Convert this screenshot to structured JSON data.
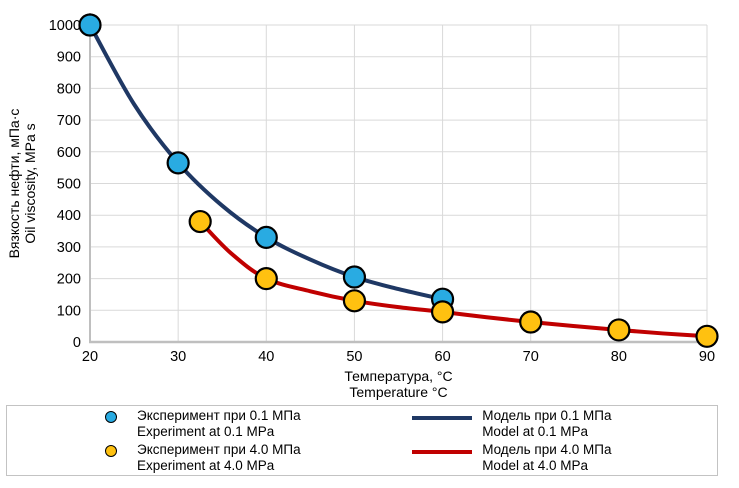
{
  "figure": {
    "background": "#FFFFFF"
  },
  "chart_data": {
    "type": "line+scatter",
    "title": "",
    "x_axis": {
      "title_lines": [
        "Температура, °C",
        "Temperature °C"
      ],
      "min": 20,
      "max": 90,
      "step": 10,
      "tick_labels": [
        "20",
        "30",
        "40",
        "50",
        "60",
        "70",
        "80",
        "90"
      ]
    },
    "y_axis": {
      "title_lines": [
        "Вязкость нефти, мПа·с",
        "Oil viscosity, MPa s"
      ],
      "min": 0,
      "max": 1000,
      "step": 100,
      "tick_labels": [
        "0",
        "100",
        "200",
        "300",
        "400",
        "500",
        "600",
        "700",
        "800",
        "900",
        "1000"
      ]
    },
    "grid": true,
    "colors": {
      "grid": "#D9D9D9",
      "axis": "#BFBFBF",
      "marker_outline": "#000000"
    },
    "series": [
      {
        "id": "model-0.1mpa",
        "kind": "line",
        "label_ru": "Модель при 0.1 МПа",
        "label_en": "Model at 0.1 MPa",
        "color": "#1F3864",
        "width": 4,
        "points": [
          [
            20,
            1000
          ],
          [
            25,
            750
          ],
          [
            30,
            565
          ],
          [
            35,
            430
          ],
          [
            40,
            330
          ],
          [
            45,
            260
          ],
          [
            50,
            205
          ],
          [
            55,
            167
          ],
          [
            60,
            135
          ]
        ]
      },
      {
        "id": "model-4.0mpa",
        "kind": "line",
        "label_ru": "Модель при 4.0 МПа",
        "label_en": "Model at 4.0 MPa",
        "color": "#C00000",
        "width": 4,
        "points": [
          [
            32.5,
            380
          ],
          [
            36,
            280
          ],
          [
            40,
            200
          ],
          [
            45,
            160
          ],
          [
            50,
            130
          ],
          [
            55,
            110
          ],
          [
            60,
            95
          ],
          [
            65,
            78
          ],
          [
            70,
            63
          ],
          [
            75,
            50
          ],
          [
            80,
            38
          ],
          [
            85,
            27
          ],
          [
            90,
            18
          ]
        ]
      },
      {
        "id": "experiment-0.1mpa",
        "kind": "scatter",
        "label_ru": "Эксперимент при 0.1 МПа",
        "label_en": "Experiment at 0.1 MPa",
        "color": "#29ABE2",
        "r": 10.5,
        "points": [
          [
            20,
            1000
          ],
          [
            30,
            565
          ],
          [
            40,
            330
          ],
          [
            50,
            205
          ],
          [
            60,
            135
          ]
        ]
      },
      {
        "id": "experiment-4.0mpa",
        "kind": "scatter",
        "label_ru": "Эксперимент при 4.0 МПа",
        "label_en": "Experiment at 4.0 MPa",
        "color": "#FFC110",
        "r": 10.5,
        "points": [
          [
            32.5,
            380
          ],
          [
            40,
            200
          ],
          [
            50,
            130
          ],
          [
            60,
            95
          ],
          [
            70,
            63
          ],
          [
            80,
            38
          ],
          [
            90,
            18
          ]
        ]
      }
    ]
  },
  "legend": {
    "items": [
      {
        "marker": "circle",
        "color": "#29ABE2",
        "label_ru": "Эксперимент при 0.1 МПа",
        "label_en": "Experiment at 0.1 MPa"
      },
      {
        "marker": "circle",
        "color": "#FFC110",
        "label_ru": "Эксперимент при 4.0 МПа",
        "label_en": "Experiment at 4.0 MPa"
      },
      {
        "marker": "line",
        "color": "#1F3864",
        "label_ru": "Модель при 0.1 МПа",
        "label_en": "Model at 0.1 MPa"
      },
      {
        "marker": "line",
        "color": "#C00000",
        "label_ru": "Модель при 4.0 МПа",
        "label_en": "Model at 4.0 MPa"
      }
    ]
  }
}
